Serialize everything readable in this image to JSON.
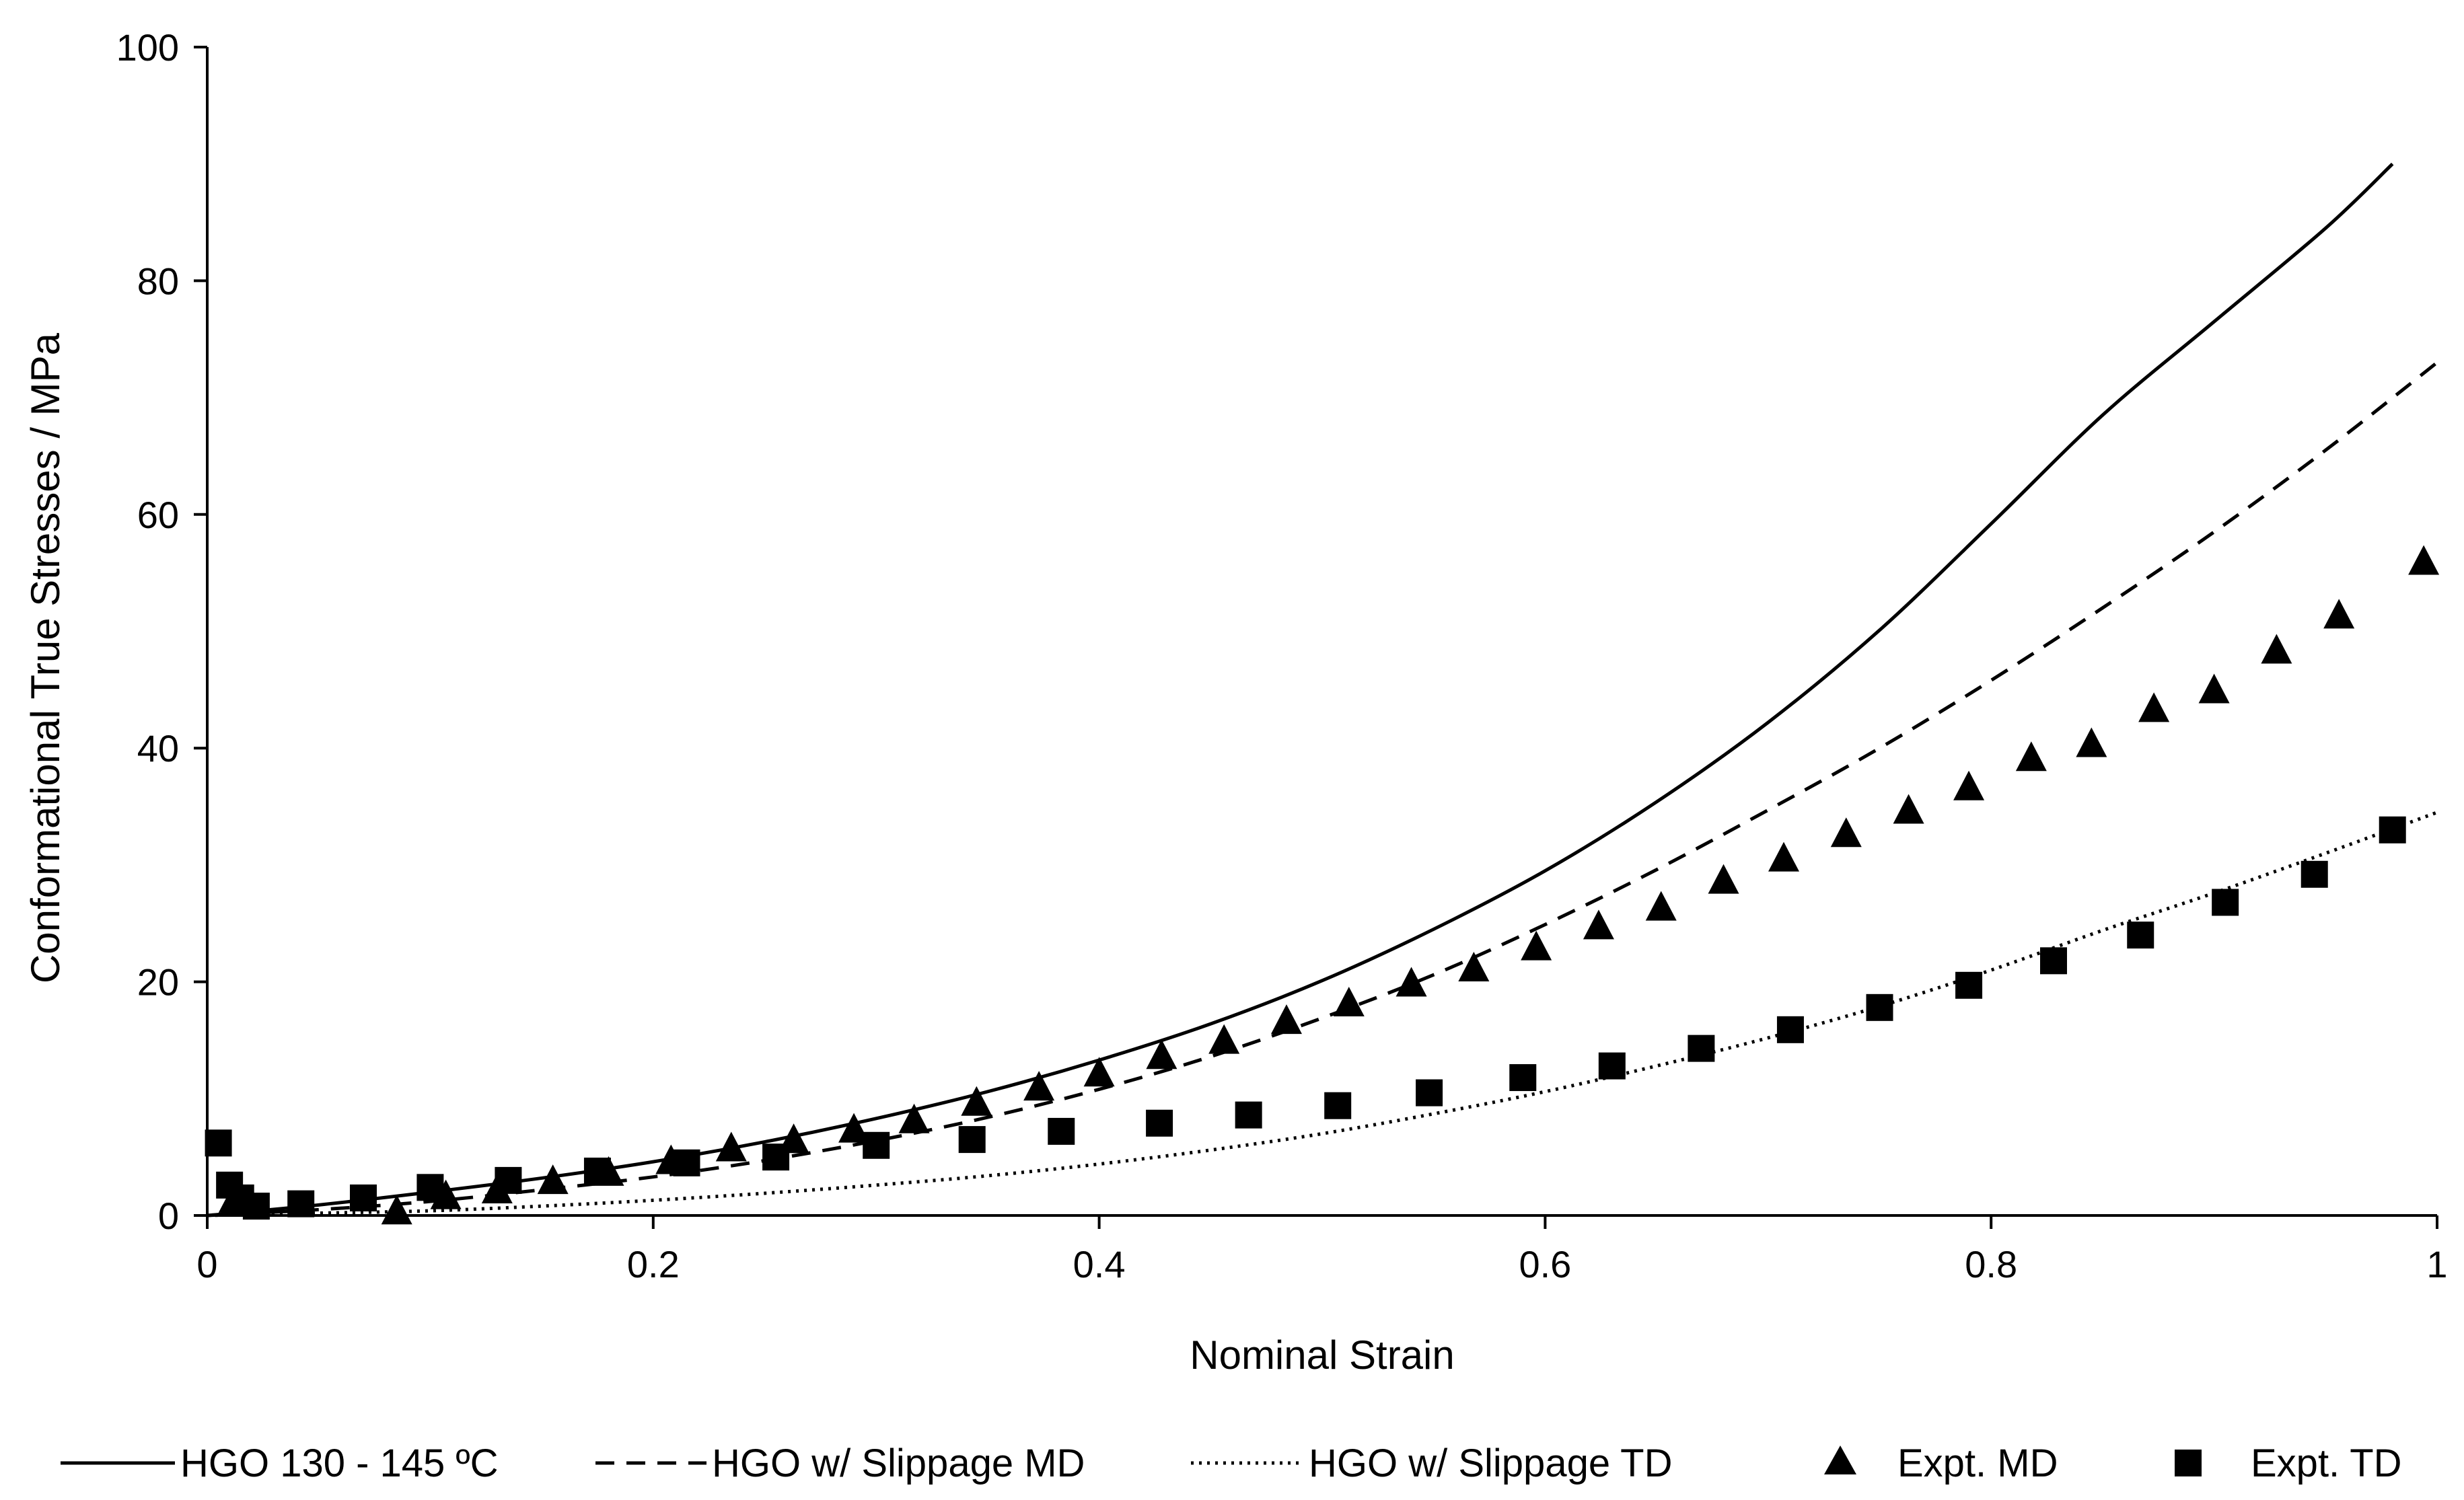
{
  "chart_data": {
    "type": "line",
    "title": "",
    "xlabel": "Nominal Strain",
    "ylabel": "Conformational True Stresses / MPa",
    "xlim": [
      0,
      1
    ],
    "ylim": [
      0,
      100
    ],
    "x_ticks": [
      0,
      0.2,
      0.4,
      0.6,
      0.8,
      1
    ],
    "x_tick_labels": [
      "0",
      "0.2",
      "0.4",
      "0.6",
      "0.8",
      "1"
    ],
    "y_ticks": [
      0,
      20,
      40,
      60,
      80,
      100
    ],
    "y_tick_labels": [
      "0",
      "20",
      "40",
      "60",
      "80",
      "100"
    ],
    "grid": false,
    "legend_position": "bottom",
    "series": [
      {
        "name": "HGO 130 - 145 ºC",
        "kind": "line",
        "style": "solid",
        "color": "#000000",
        "x": [
          0,
          0.05,
          0.1,
          0.15,
          0.2,
          0.25,
          0.3,
          0.35,
          0.4,
          0.45,
          0.5,
          0.55,
          0.6,
          0.65,
          0.7,
          0.75,
          0.8,
          0.85,
          0.9,
          0.95,
          0.98
        ],
        "y": [
          0,
          0.9,
          2.0,
          3.2,
          4.6,
          6.3,
          8.3,
          10.6,
          13.3,
          16.4,
          20.1,
          24.5,
          29.5,
          35.4,
          42.2,
          50.1,
          59.2,
          68.5,
          76.5,
          84.5,
          90
        ]
      },
      {
        "name": "HGO w/ Slippage MD",
        "kind": "line",
        "style": "dashed",
        "color": "#000000",
        "x": [
          0,
          0.05,
          0.1,
          0.15,
          0.2,
          0.25,
          0.3,
          0.35,
          0.4,
          0.45,
          0.5,
          0.55,
          0.6,
          0.65,
          0.7,
          0.75,
          0.8,
          0.85,
          0.9,
          0.95,
          1.0
        ],
        "y": [
          0,
          0.5,
          1.2,
          2.2,
          3.3,
          4.7,
          6.4,
          8.4,
          10.8,
          13.6,
          16.9,
          20.6,
          24.9,
          29.6,
          34.7,
          40.0,
          45.8,
          52.0,
          58.5,
          65.5,
          73
        ]
      },
      {
        "name": "HGO w/ Slippage TD",
        "kind": "line",
        "style": "dotted",
        "color": "#000000",
        "x": [
          0,
          0.05,
          0.1,
          0.15,
          0.2,
          0.25,
          0.3,
          0.35,
          0.4,
          0.45,
          0.5,
          0.55,
          0.6,
          0.65,
          0.7,
          0.75,
          0.8,
          0.85,
          0.9,
          0.95,
          1.0
        ],
        "y": [
          0,
          0.2,
          0.4,
          0.8,
          1.3,
          1.9,
          2.6,
          3.4,
          4.4,
          5.6,
          7.0,
          8.7,
          10.6,
          12.8,
          15.2,
          17.9,
          21.0,
          24.4,
          27.6,
          31.0,
          34.5
        ]
      },
      {
        "name": "Expt. MD",
        "kind": "scatter",
        "marker": "triangle",
        "color": "#000000",
        "x": [
          0.012,
          0.085,
          0.107,
          0.13,
          0.155,
          0.18,
          0.208,
          0.235,
          0.263,
          0.29,
          0.317,
          0.345,
          0.373,
          0.4,
          0.428,
          0.456,
          0.484,
          0.512,
          0.54,
          0.568,
          0.596,
          0.624,
          0.652,
          0.68,
          0.707,
          0.735,
          0.763,
          0.79,
          0.818,
          0.845,
          0.873,
          0.9,
          0.928,
          0.956,
          0.994
        ],
        "y": [
          1.2,
          0.2,
          1.5,
          2.0,
          2.8,
          3.5,
          4.5,
          5.6,
          6.3,
          7.2,
          8.0,
          9.5,
          10.8,
          12.0,
          13.5,
          14.8,
          16.5,
          18.0,
          19.7,
          21.0,
          22.8,
          24.6,
          26.2,
          28.5,
          30.4,
          32.5,
          34.5,
          36.5,
          39.0,
          40.2,
          43.2,
          44.8,
          48.2,
          51.2,
          55.8
        ]
      },
      {
        "name": "Expt. TD",
        "kind": "scatter",
        "marker": "square",
        "color": "#000000",
        "x": [
          0.005,
          0.01,
          0.015,
          0.022,
          0.042,
          0.07,
          0.1,
          0.135,
          0.175,
          0.215,
          0.255,
          0.3,
          0.343,
          0.383,
          0.427,
          0.467,
          0.507,
          0.548,
          0.59,
          0.63,
          0.67,
          0.71,
          0.75,
          0.79,
          0.828,
          0.867,
          0.905,
          0.945,
          0.98
        ],
        "y": [
          6.2,
          2.6,
          1.5,
          0.8,
          1.0,
          1.5,
          2.4,
          3.0,
          3.8,
          4.5,
          5.0,
          6.0,
          6.5,
          7.2,
          7.9,
          8.6,
          9.4,
          10.5,
          11.8,
          12.8,
          14.3,
          15.9,
          17.8,
          19.7,
          21.8,
          24.0,
          26.8,
          29.2,
          33.0
        ]
      }
    ]
  }
}
